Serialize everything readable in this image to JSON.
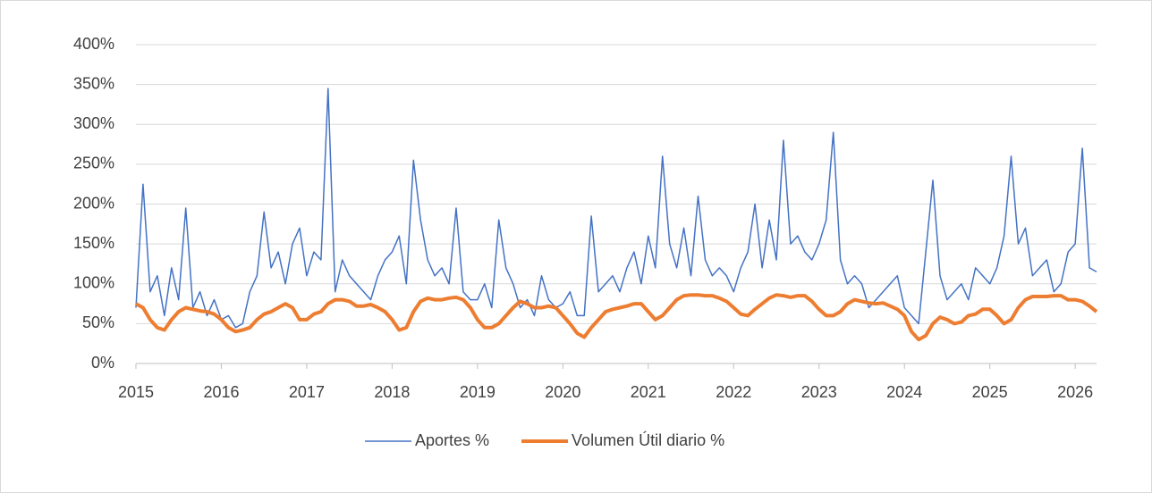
{
  "chart_data": {
    "type": "line",
    "x": [
      2015,
      2015.083,
      2015.167,
      2015.25,
      2015.333,
      2015.417,
      2015.5,
      2015.583,
      2015.667,
      2015.75,
      2015.833,
      2015.917,
      2016,
      2016.083,
      2016.167,
      2016.25,
      2016.333,
      2016.417,
      2016.5,
      2016.583,
      2016.667,
      2016.75,
      2016.833,
      2016.917,
      2017,
      2017.083,
      2017.167,
      2017.25,
      2017.333,
      2017.417,
      2017.5,
      2017.583,
      2017.667,
      2017.75,
      2017.833,
      2017.917,
      2018,
      2018.083,
      2018.167,
      2018.25,
      2018.333,
      2018.417,
      2018.5,
      2018.583,
      2018.667,
      2018.75,
      2018.833,
      2018.917,
      2019,
      2019.083,
      2019.167,
      2019.25,
      2019.333,
      2019.417,
      2019.5,
      2019.583,
      2019.667,
      2019.75,
      2019.833,
      2019.917,
      2020,
      2020.083,
      2020.167,
      2020.25,
      2020.333,
      2020.417,
      2020.5,
      2020.583,
      2020.667,
      2020.75,
      2020.833,
      2020.917,
      2021,
      2021.083,
      2021.167,
      2021.25,
      2021.333,
      2021.417,
      2021.5,
      2021.583,
      2021.667,
      2021.75,
      2021.833,
      2021.917,
      2022,
      2022.083,
      2022.167,
      2022.25,
      2022.333,
      2022.417,
      2022.5,
      2022.583,
      2022.667,
      2022.75,
      2022.833,
      2022.917,
      2023,
      2023.083,
      2023.167,
      2023.25,
      2023.333,
      2023.417,
      2023.5,
      2023.583,
      2023.667,
      2023.75,
      2023.833,
      2023.917,
      2024,
      2024.083,
      2024.167,
      2024.25,
      2024.333,
      2024.417,
      2024.5,
      2024.583,
      2024.667,
      2024.75,
      2024.833,
      2024.917,
      2025,
      2025.083,
      2025.167,
      2025.25,
      2025.333,
      2025.417,
      2025.5,
      2025.583,
      2025.667,
      2025.75,
      2025.833,
      2025.917,
      2026,
      2026.083,
      2026.167,
      2026.25
    ],
    "series": [
      {
        "name": "Aportes %",
        "color": "#4472c4",
        "width": 1.5,
        "values": [
          70,
          225,
          90,
          110,
          60,
          120,
          80,
          195,
          70,
          90,
          60,
          80,
          55,
          60,
          45,
          50,
          90,
          110,
          190,
          120,
          140,
          100,
          150,
          170,
          110,
          140,
          130,
          345,
          90,
          130,
          110,
          100,
          90,
          80,
          110,
          130,
          140,
          160,
          100,
          255,
          180,
          130,
          110,
          120,
          100,
          195,
          90,
          80,
          80,
          100,
          70,
          180,
          120,
          100,
          70,
          80,
          60,
          110,
          80,
          70,
          75,
          90,
          60,
          60,
          185,
          90,
          100,
          110,
          90,
          120,
          140,
          100,
          160,
          120,
          260,
          150,
          120,
          170,
          110,
          210,
          130,
          110,
          120,
          110,
          90,
          120,
          140,
          200,
          120,
          180,
          130,
          280,
          150,
          160,
          140,
          130,
          150,
          180,
          290,
          130,
          100,
          110,
          100,
          70,
          80,
          90,
          100,
          110,
          70,
          60,
          50,
          140,
          230,
          110,
          80,
          90,
          100,
          80,
          120,
          110,
          100,
          120,
          160,
          260,
          150,
          170,
          110,
          120,
          130,
          90,
          100,
          140,
          150,
          270,
          120,
          115
        ]
      },
      {
        "name": "Volumen Útil diario %",
        "color": "#ed7d31",
        "width": 4,
        "values": [
          75,
          70,
          55,
          45,
          42,
          55,
          65,
          70,
          68,
          66,
          65,
          62,
          55,
          45,
          40,
          42,
          45,
          55,
          62,
          65,
          70,
          75,
          70,
          55,
          55,
          62,
          65,
          75,
          80,
          80,
          78,
          72,
          72,
          74,
          70,
          65,
          55,
          42,
          45,
          65,
          78,
          82,
          80,
          80,
          82,
          83,
          80,
          70,
          55,
          45,
          45,
          50,
          60,
          70,
          78,
          75,
          70,
          70,
          72,
          70,
          60,
          50,
          38,
          33,
          45,
          55,
          65,
          68,
          70,
          72,
          75,
          75,
          65,
          55,
          60,
          70,
          80,
          85,
          86,
          86,
          85,
          85,
          82,
          78,
          70,
          62,
          60,
          68,
          75,
          82,
          86,
          85,
          83,
          85,
          85,
          78,
          68,
          60,
          60,
          65,
          75,
          80,
          78,
          76,
          75,
          76,
          72,
          68,
          60,
          40,
          30,
          35,
          50,
          58,
          55,
          50,
          52,
          60,
          62,
          68,
          68,
          60,
          50,
          55,
          70,
          80,
          84,
          84,
          84,
          85,
          85,
          80,
          80,
          78,
          72,
          65
        ]
      }
    ],
    "xlim": [
      2015,
      2026.25
    ],
    "xticks": [
      2015,
      2016,
      2017,
      2018,
      2019,
      2020,
      2021,
      2022,
      2023,
      2024,
      2025,
      2026
    ],
    "ylim": [
      0,
      400
    ],
    "yticks": [
      {
        "value": 0,
        "label": "0%"
      },
      {
        "value": 50,
        "label": "50%"
      },
      {
        "value": 100,
        "label": "100%"
      },
      {
        "value": 150,
        "label": "150%"
      },
      {
        "value": 200,
        "label": "200%"
      },
      {
        "value": 250,
        "label": "250%"
      },
      {
        "value": 300,
        "label": "300%"
      },
      {
        "value": 350,
        "label": "350%"
      },
      {
        "value": 400,
        "label": "400%"
      }
    ],
    "grid": true,
    "legend": "bottom"
  }
}
